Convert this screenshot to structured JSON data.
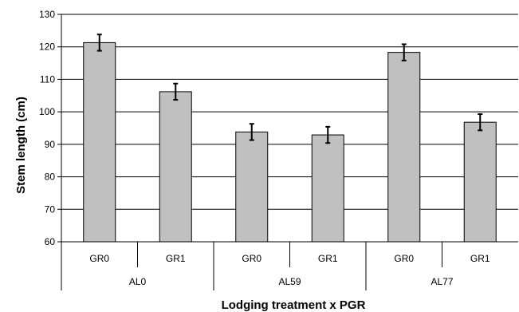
{
  "chart_data": {
    "type": "bar",
    "ylabel": "Stem length (cm)",
    "xlabel": "Lodging treatment x PGR",
    "ylim": [
      60,
      130
    ],
    "y_ticks": [
      60,
      70,
      80,
      90,
      100,
      110,
      120,
      130
    ],
    "grid": "horizontal",
    "groups": [
      {
        "label": "AL0",
        "categories": [
          "GR0",
          "GR1"
        ]
      },
      {
        "label": "AL59",
        "categories": [
          "GR0",
          "GR1"
        ]
      },
      {
        "label": "AL77",
        "categories": [
          "GR0",
          "GR1"
        ]
      }
    ],
    "categories": [
      "GR0",
      "GR1",
      "GR0",
      "GR1",
      "GR0",
      "GR1"
    ],
    "values": [
      121.3,
      106.2,
      93.8,
      92.9,
      118.3,
      96.8
    ],
    "error": [
      2.5,
      2.5,
      2.5,
      2.5,
      2.5,
      2.5
    ],
    "colors": {
      "bar_fill": "#c0c0c0",
      "bar_stroke": "#000000",
      "grid": "#000000"
    }
  }
}
